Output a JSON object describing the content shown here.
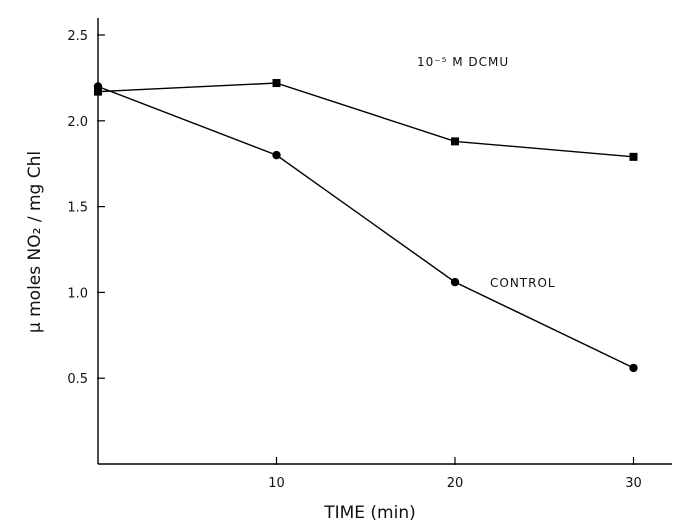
{
  "chart_data": {
    "type": "line",
    "title": "",
    "xlabel": "TIME (min)",
    "ylabel": "μ moles NO₂ / mg Chl",
    "xlim": [
      0,
      32
    ],
    "ylim": [
      0,
      2.5
    ],
    "xticks": [
      10,
      20,
      30
    ],
    "yticks": [
      0.5,
      1.0,
      1.5,
      2.0,
      2.5
    ],
    "ytick_labels": [
      "0.5",
      "1.0",
      "1.5",
      "2.0",
      "2.5"
    ],
    "grid": false,
    "series": [
      {
        "marker": "square",
        "x": [
          0,
          10,
          20,
          30
        ],
        "values": [
          2.17,
          2.22,
          1.88,
          1.79
        ],
        "annotation": "10⁻⁵ M  DCMU"
      },
      {
        "marker": "circle",
        "x": [
          0,
          10,
          20,
          30
        ],
        "values": [
          2.2,
          1.8,
          1.06,
          0.56
        ],
        "annotation": "CONTROL"
      }
    ]
  }
}
